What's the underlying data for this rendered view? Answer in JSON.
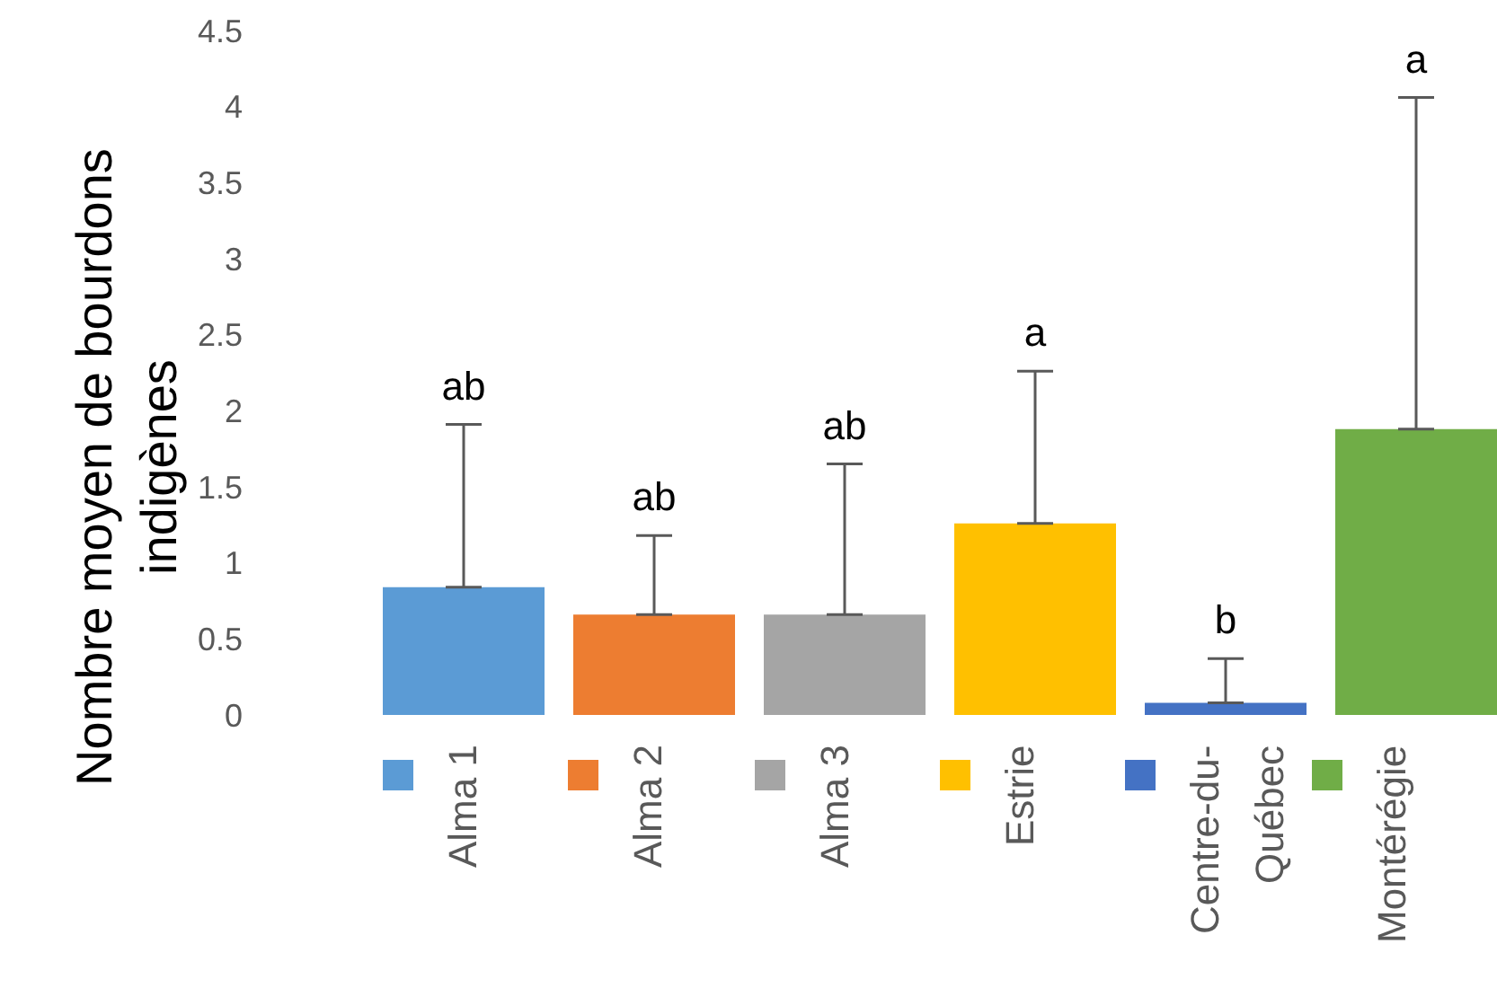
{
  "chart_data": {
    "type": "bar",
    "ylabel": "Nombre moyen de bourdons indigènes",
    "categories": [
      null
    ],
    "annotations": [
      {
        "text": "ab",
        "y": 1.91
      },
      {
        "text": "ab",
        "y": 1.18
      },
      {
        "text": "ab",
        "y": 1.65
      },
      {
        "text": "a",
        "y": 2.26
      },
      {
        "text": "b",
        "y": 0.37
      },
      {
        "text": "a",
        "y": 4.06
      }
    ],
    "ylim": [
      0,
      4.5
    ],
    "yticks": [
      0,
      0.5,
      1,
      1.5,
      2,
      2.5,
      3,
      3.5,
      4,
      4.5
    ],
    "grid": false,
    "legend": "bottom",
    "series": [
      {
        "name": "Alma 1",
        "color": "#5b9bd5",
        "values": [
          0.84
        ],
        "errors": [
          [
            0.84,
            1.91
          ]
        ]
      },
      {
        "name": "Alma 2",
        "color": "#ed7d31",
        "values": [
          0.66
        ],
        "errors": [
          [
            0.66,
            1.18
          ]
        ]
      },
      {
        "name": "Alma 3",
        "color": "#a5a5a5",
        "values": [
          0.66
        ],
        "errors": [
          [
            0.66,
            1.65
          ]
        ]
      },
      {
        "name": "Estrie",
        "color": "#ffc000",
        "values": [
          1.26
        ],
        "errors": [
          [
            1.26,
            2.26
          ]
        ]
      },
      {
        "name": "Centre-du-Québec",
        "color": "#4472c4",
        "values": [
          0.08
        ],
        "errors": [
          [
            0.08,
            0.37
          ]
        ]
      },
      {
        "name": "Montérégie",
        "color": "#70ad47",
        "values": [
          1.88
        ],
        "errors": [
          [
            1.88,
            4.06
          ]
        ]
      }
    ]
  }
}
